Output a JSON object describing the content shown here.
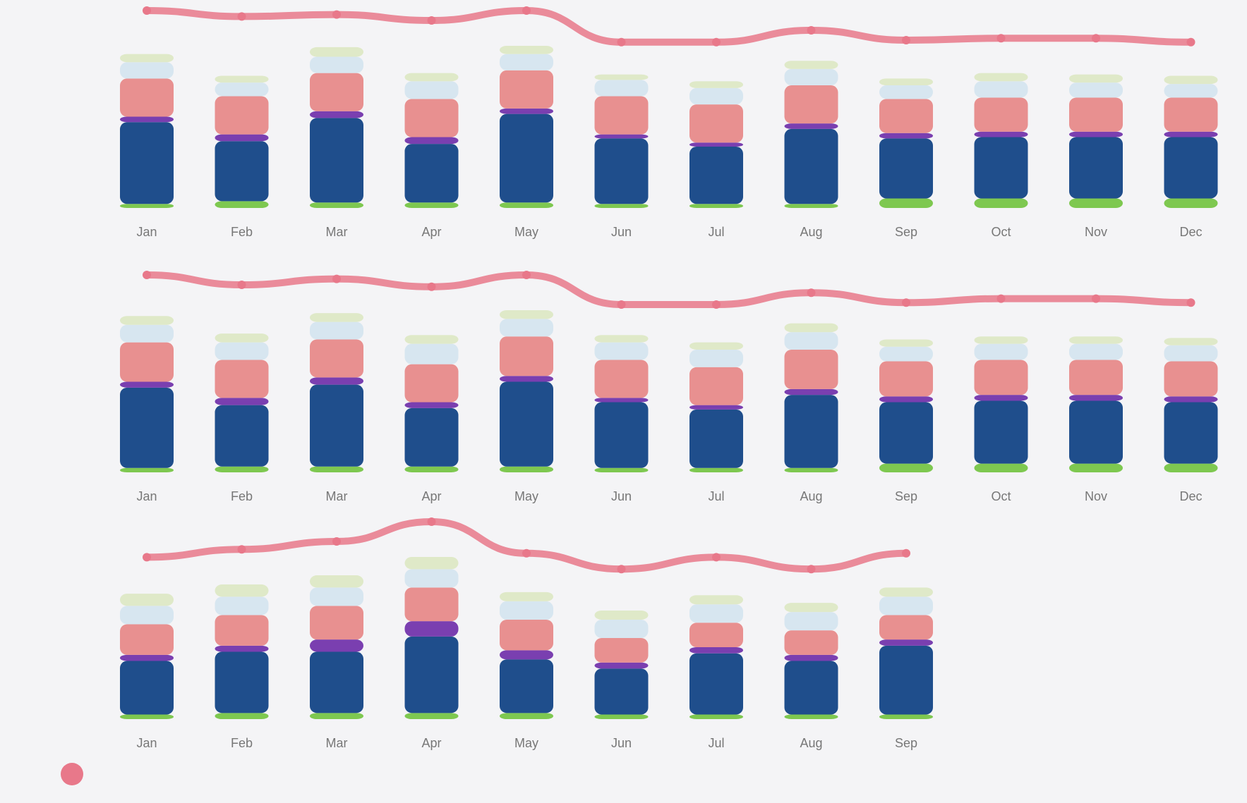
{
  "chart_data": {
    "type": "bar",
    "stacked": true,
    "title": "",
    "overlay": "line",
    "months": [
      "Jan",
      "Feb",
      "Mar",
      "Apr",
      "May",
      "Jun",
      "Jul",
      "Aug",
      "Sep",
      "Oct",
      "Nov",
      "Dec"
    ],
    "segment_colors": [
      "#7ec850",
      "#1f4e8c",
      "#7a3fb0",
      "#e89090",
      "#d7e6f0",
      "#dfe9c8"
    ],
    "line_color": "#e8788a",
    "legend": {
      "position": "bottom-left",
      "color": "#e8788a",
      "label": ""
    },
    "ylim": [
      0,
      100
    ],
    "rows": [
      {
        "label": "",
        "bars": [
          [
            3,
            60,
            4,
            28,
            12,
            6
          ],
          [
            5,
            44,
            5,
            28,
            10,
            5
          ],
          [
            4,
            62,
            5,
            28,
            12,
            7
          ],
          [
            4,
            43,
            5,
            28,
            13,
            6
          ],
          [
            4,
            65,
            4,
            28,
            12,
            6
          ],
          [
            3,
            48,
            3,
            28,
            12,
            4
          ],
          [
            3,
            42,
            3,
            28,
            12,
            5
          ],
          [
            3,
            55,
            4,
            28,
            12,
            6
          ],
          [
            7,
            44,
            4,
            25,
            10,
            5
          ],
          [
            7,
            45,
            4,
            25,
            12,
            6
          ],
          [
            7,
            45,
            4,
            25,
            11,
            6
          ],
          [
            7,
            45,
            4,
            25,
            10,
            6
          ]
        ],
        "line": [
          100,
          97,
          98,
          95,
          100,
          84,
          84,
          90,
          85,
          86,
          86,
          84
        ]
      },
      {
        "label": "",
        "bars": [
          [
            3,
            55,
            4,
            27,
            12,
            6
          ],
          [
            4,
            42,
            5,
            26,
            12,
            6
          ],
          [
            4,
            56,
            5,
            26,
            12,
            6
          ],
          [
            4,
            40,
            4,
            26,
            14,
            6
          ],
          [
            4,
            58,
            4,
            27,
            12,
            6
          ],
          [
            3,
            45,
            3,
            26,
            12,
            5
          ],
          [
            3,
            40,
            3,
            26,
            12,
            5
          ],
          [
            3,
            50,
            4,
            27,
            12,
            6
          ],
          [
            6,
            42,
            4,
            24,
            10,
            5
          ],
          [
            6,
            43,
            4,
            24,
            11,
            5
          ],
          [
            6,
            43,
            4,
            24,
            11,
            5
          ],
          [
            6,
            42,
            4,
            24,
            11,
            5
          ]
        ],
        "line": [
          100,
          95,
          98,
          94,
          100,
          85,
          85,
          91,
          86,
          88,
          88,
          86
        ]
      },
      {
        "label": "",
        "bars": [
          [
            3,
            35,
            4,
            20,
            12,
            8
          ],
          [
            4,
            40,
            4,
            20,
            12,
            8
          ],
          [
            4,
            40,
            8,
            22,
            12,
            8
          ],
          [
            4,
            50,
            10,
            22,
            12,
            8
          ],
          [
            4,
            35,
            6,
            20,
            12,
            6
          ],
          [
            3,
            30,
            4,
            16,
            12,
            6
          ],
          [
            3,
            40,
            4,
            16,
            12,
            6
          ],
          [
            3,
            35,
            4,
            16,
            12,
            6
          ],
          [
            3,
            45,
            4,
            16,
            12,
            6
          ]
        ],
        "line": [
          82,
          86,
          90,
          100,
          84,
          76,
          82,
          76,
          84
        ]
      }
    ]
  }
}
